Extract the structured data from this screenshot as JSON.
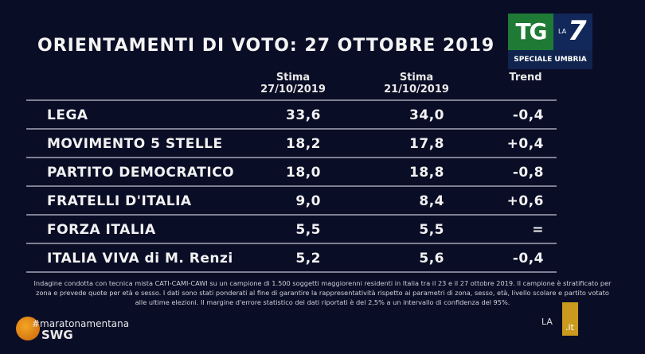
{
  "title": "ORIENTAMENTI DI VOTO: 27 OTTOBRE 2019",
  "logo": {
    "tg": "TG",
    "la": "LA",
    "seven": "7",
    "subtitle": "SPECIALE UMBRIA"
  },
  "headers": {
    "col1": "Stima",
    "col1_date": "27/10/2019",
    "col2": "Stima",
    "col2_date": "21/10/2019",
    "trend": "Trend"
  },
  "rows": [
    {
      "party": "LEGA",
      "v1": "33,6",
      "v2": "34,0",
      "trend": "-0,4"
    },
    {
      "party": "MOVIMENTO 5 STELLE",
      "v1": "18,2",
      "v2": "17,8",
      "trend": "+0,4"
    },
    {
      "party": "PARTITO DEMOCRATICO",
      "v1": "18,0",
      "v2": "18,8",
      "trend": "-0,8"
    },
    {
      "party": "FRATELLI D'ITALIA",
      "v1": "9,0",
      "v2": "8,4",
      "trend": "+0,6"
    },
    {
      "party": "FORZA ITALIA",
      "v1": "5,5",
      "v2": "5,5",
      "trend": "="
    },
    {
      "party": "ITALIA VIVA di M. Renzi",
      "v1": "5,2",
      "v2": "5,6",
      "trend": "-0,4"
    }
  ],
  "note": "Indagine condotta con tecnica mista CATI-CAMI-CAWI su un campione di 1.500 soggetti maggiorenni residenti in Italia tra il 23 e il 27 ottobre 2019. Il campione è stratificato per zona e prevede quote per età e sesso. I dati sono stati ponderati al fine di garantire la rappresentatività rispetto ai parametri di zona, sesso, età, livello scolare e partito votato alle ultime elezioni. Il margine d'errore statistico dei dati riportati è del 2,5% a un intervallo di confidenza del 95%.",
  "hashtag": "#maratonamentana",
  "swg": "SWG",
  "la7it": {
    "la": "LA",
    "it": ".it"
  }
}
